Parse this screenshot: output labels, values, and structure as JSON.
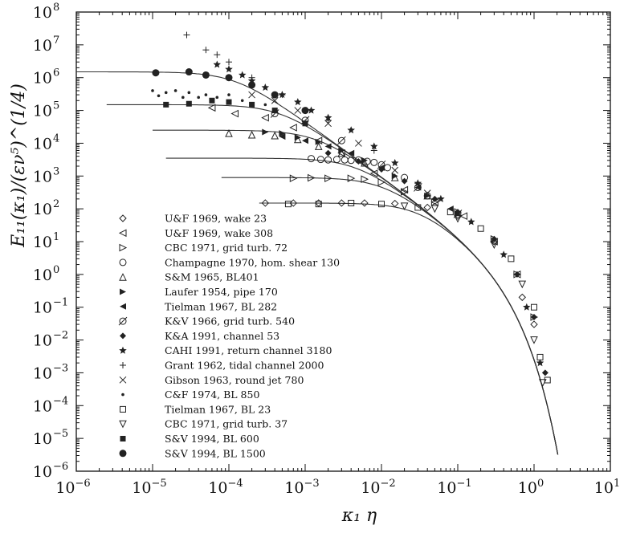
{
  "chart_data": {
    "type": "scatter",
    "title": "",
    "xlabel": "κ₁ η",
    "ylabel": "E₁₁(κ₁)/(εν⁵)^(1/4)",
    "x_scale": "log",
    "y_scale": "log",
    "xlim": [
      1e-06,
      10
    ],
    "ylim": [
      1e-06,
      100000000.0
    ],
    "x_ticks": [
      {
        "base": "10",
        "exp": "−6"
      },
      {
        "base": "10",
        "exp": "−5"
      },
      {
        "base": "10",
        "exp": "−4"
      },
      {
        "base": "10",
        "exp": "−3"
      },
      {
        "base": "10",
        "exp": "−2"
      },
      {
        "base": "10",
        "exp": "−1"
      },
      {
        "base": "10",
        "exp": "0"
      },
      {
        "base": "10",
        "exp": "1"
      }
    ],
    "y_ticks": [
      {
        "base": "10",
        "exp": "−6"
      },
      {
        "base": "10",
        "exp": "−5"
      },
      {
        "base": "10",
        "exp": "−4"
      },
      {
        "base": "10",
        "exp": "−3"
      },
      {
        "base": "10",
        "exp": "−2"
      },
      {
        "base": "10",
        "exp": "−1"
      },
      {
        "base": "10",
        "exp": "0"
      },
      {
        "base": "10",
        "exp": "1"
      },
      {
        "base": "10",
        "exp": "2"
      },
      {
        "base": "10",
        "exp": "3"
      },
      {
        "base": "10",
        "exp": "4"
      },
      {
        "base": "10",
        "exp": "5"
      },
      {
        "base": "10",
        "exp": "6"
      },
      {
        "base": "10",
        "exp": "7"
      },
      {
        "base": "10",
        "exp": "8"
      }
    ],
    "legend_position": "left-center",
    "model_curves": [
      {
        "plateau": 1500000.0,
        "x_start": 1e-06
      },
      {
        "plateau": 150000.0,
        "x_start": 2.5e-06
      },
      {
        "plateau": 25000.0,
        "x_start": 1e-05
      },
      {
        "plateau": 3500.0,
        "x_start": 1.5e-05
      },
      {
        "plateau": 900.0,
        "x_start": 8e-05
      },
      {
        "plateau": 150.0,
        "x_start": 0.00025
      }
    ],
    "series": [
      {
        "name": "U&F 1969, wake 23",
        "marker": "diamond-open",
        "points": [
          [
            0.0003,
            150
          ],
          [
            0.0007,
            150
          ],
          [
            0.0015,
            150
          ],
          [
            0.003,
            150
          ],
          [
            0.006,
            150
          ],
          [
            0.015,
            145
          ],
          [
            0.04,
            110
          ],
          [
            0.1,
            60
          ],
          [
            0.3,
            10
          ],
          [
            0.7,
            0.2
          ],
          [
            1.0,
            0.03
          ]
        ]
      },
      {
        "name": "U&F 1969, wake 308",
        "marker": "triangle-left-open",
        "points": [
          [
            6e-05,
            120000.0
          ],
          [
            0.00012,
            80000.0
          ],
          [
            0.0003,
            60000.0
          ],
          [
            0.0007,
            30000.0
          ],
          [
            0.0015,
            12000.0
          ],
          [
            0.003,
            5000
          ],
          [
            0.008,
            1200
          ],
          [
            0.02,
            380
          ],
          [
            0.05,
            160
          ],
          [
            0.12,
            60
          ],
          [
            0.3,
            10
          ],
          [
            0.6,
            1
          ]
        ]
      },
      {
        "name": "CBC 1971, grid turb. 72",
        "marker": "triangle-right-open",
        "points": [
          [
            0.0007,
            850
          ],
          [
            0.0012,
            880
          ],
          [
            0.002,
            850
          ],
          [
            0.004,
            850
          ],
          [
            0.006,
            800
          ],
          [
            0.01,
            650
          ],
          [
            0.02,
            330
          ],
          [
            0.05,
            160
          ],
          [
            0.1,
            80
          ],
          [
            0.3,
            12
          ],
          [
            0.6,
            1
          ],
          [
            1.0,
            0.05
          ]
        ]
      },
      {
        "name": "Champagne 1970, hom. shear 130",
        "marker": "circle-open",
        "points": [
          [
            0.0012,
            3400
          ],
          [
            0.0016,
            3200
          ],
          [
            0.002,
            3100
          ],
          [
            0.0026,
            3200
          ],
          [
            0.0033,
            3100
          ],
          [
            0.004,
            3000
          ],
          [
            0.005,
            3100
          ],
          [
            0.0065,
            2800
          ],
          [
            0.008,
            2600
          ],
          [
            0.012,
            1800
          ],
          [
            0.02,
            900
          ],
          [
            0.04,
            250
          ]
        ]
      },
      {
        "name": "S&M 1965, BL401",
        "marker": "triangle-up-open",
        "points": [
          [
            0.0001,
            20000.0
          ],
          [
            0.0002,
            18000.0
          ],
          [
            0.0004,
            17000.0
          ],
          [
            0.0008,
            13000.0
          ],
          [
            0.0015,
            8000
          ],
          [
            0.003,
            5000
          ],
          [
            0.006,
            2500
          ],
          [
            0.015,
            900
          ],
          [
            0.04,
            250
          ]
        ]
      },
      {
        "name": "Laufer 1954, pipe 170",
        "marker": "triangle-right-filled",
        "points": [
          [
            0.0003,
            22000.0
          ],
          [
            0.0005,
            20000.0
          ],
          [
            0.0008,
            15000.0
          ],
          [
            0.0015,
            11000.0
          ],
          [
            0.003,
            6000
          ],
          [
            0.006,
            3000
          ],
          [
            0.015,
            1000
          ],
          [
            0.04,
            250
          ],
          [
            0.1,
            70
          ]
        ]
      },
      {
        "name": "Tielman 1967, BL 282",
        "marker": "triangle-left-filled",
        "points": [
          [
            0.0005,
            16000.0
          ],
          [
            0.001,
            12000.0
          ],
          [
            0.002,
            8000
          ],
          [
            0.004,
            5000
          ],
          [
            0.01,
            1800
          ],
          [
            0.03,
            450
          ],
          [
            0.08,
            100
          ]
        ]
      },
      {
        "name": "K&V 1966, grid turb. 540",
        "marker": "circle-slash",
        "points": [
          [
            0.0004,
            80000.0
          ],
          [
            0.001,
            50000.0
          ],
          [
            0.003,
            12000.0
          ],
          [
            0.01,
            2200
          ],
          [
            0.03,
            450
          ],
          [
            0.1,
            70
          ]
        ]
      },
      {
        "name": "K&A 1991, channel 53",
        "marker": "diamond-filled",
        "points": [
          [
            0.002,
            5000
          ],
          [
            0.005,
            2800
          ],
          [
            0.01,
            1600
          ],
          [
            0.02,
            700
          ],
          [
            0.05,
            200
          ],
          [
            0.1,
            80
          ],
          [
            0.3,
            12
          ],
          [
            0.6,
            1
          ],
          [
            1.0,
            0.05
          ],
          [
            1.4,
            0.001
          ]
        ]
      },
      {
        "name": "CAHI 1991, return channel 3180",
        "marker": "star-filled",
        "points": [
          [
            7e-05,
            2500000.0
          ],
          [
            0.0001,
            1800000.0
          ],
          [
            0.00015,
            1200000.0
          ],
          [
            0.0002,
            800000.0
          ],
          [
            0.0003,
            500000.0
          ],
          [
            0.0005,
            300000.0
          ],
          [
            0.0008,
            180000.0
          ],
          [
            0.0012,
            100000.0
          ],
          [
            0.002,
            60000.0
          ],
          [
            0.004,
            25000.0
          ],
          [
            0.008,
            8000
          ],
          [
            0.015,
            2500
          ],
          [
            0.03,
            600
          ],
          [
            0.06,
            200
          ],
          [
            0.15,
            40
          ],
          [
            0.4,
            4
          ],
          [
            0.8,
            0.1
          ],
          [
            1.2,
            0.002
          ]
        ]
      },
      {
        "name": "Grant 1962, tidal channel 2000",
        "marker": "plus",
        "points": [
          [
            2.8e-05,
            20000000.0
          ],
          [
            5e-05,
            7000000.0
          ],
          [
            7e-05,
            5000000.0
          ],
          [
            0.0001,
            3000000.0
          ],
          [
            0.0002,
            1000000.0
          ],
          [
            0.0005,
            300000.0
          ],
          [
            0.002,
            50000.0
          ],
          [
            0.008,
            6000
          ],
          [
            0.03,
            600
          ]
        ]
      },
      {
        "name": "Gibson 1963, round jet 780",
        "marker": "cross",
        "points": [
          [
            0.0002,
            300000.0
          ],
          [
            0.0004,
            200000.0
          ],
          [
            0.0008,
            100000.0
          ],
          [
            0.002,
            40000.0
          ],
          [
            0.005,
            10000.0
          ],
          [
            0.015,
            1500
          ],
          [
            0.04,
            300
          ],
          [
            0.1,
            70
          ]
        ]
      },
      {
        "name": "C&F 1974, BL 850",
        "marker": "dot",
        "points": [
          [
            1e-05,
            400000.0
          ],
          [
            1.2e-05,
            280000.0
          ],
          [
            1.5e-05,
            350000.0
          ],
          [
            2e-05,
            400000.0
          ],
          [
            2.5e-05,
            250000.0
          ],
          [
            3e-05,
            350000.0
          ],
          [
            4e-05,
            250000.0
          ],
          [
            5e-05,
            300000.0
          ],
          [
            7e-05,
            250000.0
          ],
          [
            0.0001,
            300000.0
          ],
          [
            0.00015,
            200000.0
          ],
          [
            0.0003,
            150000.0
          ]
        ]
      },
      {
        "name": "Tielman 1967, BL 23",
        "marker": "square-open",
        "points": [
          [
            0.0006,
            140
          ],
          [
            0.0015,
            140
          ],
          [
            0.004,
            150
          ],
          [
            0.01,
            140
          ],
          [
            0.03,
            110
          ],
          [
            0.08,
            80
          ],
          [
            0.2,
            25
          ],
          [
            0.5,
            3
          ],
          [
            1.0,
            0.1
          ],
          [
            1.2,
            0.003
          ],
          [
            1.5,
            0.0006
          ]
        ]
      },
      {
        "name": "CBC 1971, grid turb. 37",
        "marker": "triangle-down-open",
        "points": [
          [
            0.02,
            120
          ],
          [
            0.05,
            100
          ],
          [
            0.1,
            50
          ],
          [
            0.3,
            8
          ],
          [
            0.7,
            0.5
          ],
          [
            1.0,
            0.01
          ],
          [
            1.3,
            0.0005
          ]
        ]
      },
      {
        "name": "S&V 1994, BL 600",
        "marker": "square-filled",
        "points": [
          [
            1.5e-05,
            150000.0
          ],
          [
            3e-05,
            160000.0
          ],
          [
            6e-05,
            200000.0
          ],
          [
            0.0001,
            180000.0
          ],
          [
            0.0002,
            150000.0
          ],
          [
            0.0004,
            100000.0
          ],
          [
            0.001,
            40000.0
          ]
        ]
      },
      {
        "name": "S&V 1994, BL 1500",
        "marker": "circle-filled",
        "points": [
          [
            1.1e-05,
            1400000.0
          ],
          [
            3e-05,
            1500000.0
          ],
          [
            5e-05,
            1200000.0
          ],
          [
            0.0001,
            1000000.0
          ],
          [
            0.0002,
            600000.0
          ],
          [
            0.0004,
            300000.0
          ],
          [
            0.001,
            100000.0
          ]
        ]
      }
    ]
  }
}
